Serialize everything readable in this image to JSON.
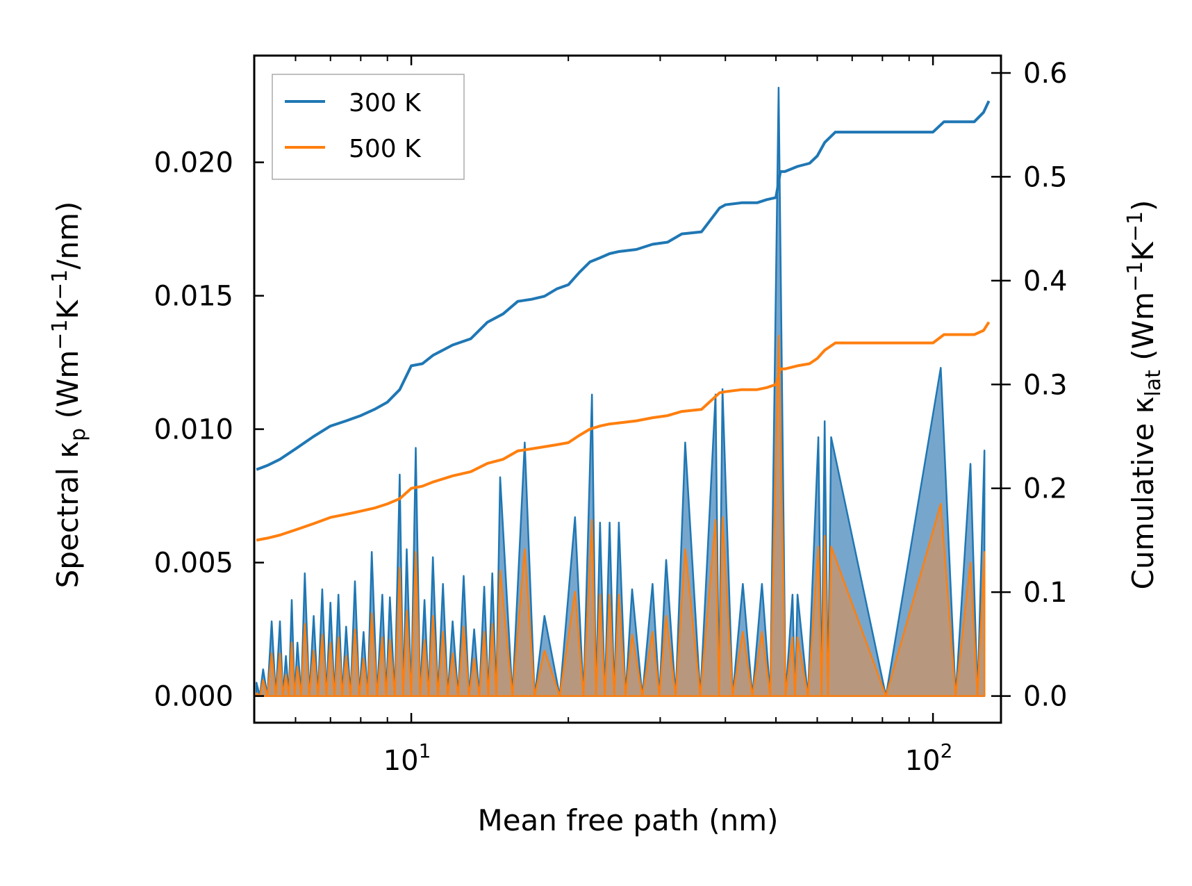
{
  "chart_data": {
    "type": "line",
    "x_scale": "log",
    "xlim": [
      5,
      135
    ],
    "xlabel": "Mean free path (nm)",
    "x_ticks": [
      {
        "value": 10,
        "base": "10",
        "exp": "1"
      },
      {
        "value": 100,
        "base": "10",
        "exp": "2"
      }
    ],
    "y_left": {
      "label_parts": {
        "pre": "Spectral κ",
        "sub": "p",
        "mid": " (Wm",
        "sup1": "−1",
        "mid2": "K",
        "sup2": "−1",
        "post": "/nm)"
      },
      "ylim": [
        -0.001,
        0.024
      ],
      "ticks": [
        "0.000",
        "0.005",
        "0.010",
        "0.015",
        "0.020"
      ],
      "tick_values": [
        0.0,
        0.005,
        0.01,
        0.015,
        0.02
      ]
    },
    "y_right": {
      "label_parts": {
        "pre": "Cumulative κ",
        "sub": "lat",
        "mid": " (Wm",
        "sup1": "−1",
        "mid2": "K",
        "sup2": "−1",
        "post": ")"
      },
      "ylim": [
        -0.0257,
        0.6167
      ],
      "ticks": [
        "0.0",
        "0.1",
        "0.2",
        "0.3",
        "0.4",
        "0.5",
        "0.6"
      ],
      "tick_values": [
        0.0,
        0.1,
        0.2,
        0.3,
        0.4,
        0.5,
        0.6
      ]
    },
    "legend": {
      "position": "top-left",
      "entries": [
        "300 K",
        "500 K"
      ]
    },
    "colors": {
      "s300": "#1f77b4",
      "s500": "#ff7f0e",
      "fill300": "#5f97c4",
      "fill500": "#c7956a"
    },
    "cumulative": [
      {
        "name": "300 K",
        "axis": "right",
        "x": [
          5.05,
          5.3,
          5.6,
          6.0,
          6.5,
          7.0,
          7.5,
          8.0,
          8.5,
          9.0,
          9.5,
          10.0,
          10.5,
          11.0,
          12.0,
          13.0,
          14.0,
          15.0,
          16.0,
          17.0,
          18.0,
          19.0,
          20.0,
          21.0,
          22.0,
          23.0,
          24.0,
          25.0,
          27.0,
          29.0,
          31.0,
          33.0,
          36.0,
          39.0,
          40.0,
          43.0,
          46.0,
          48.0,
          50.0,
          51.0,
          52.0,
          55.0,
          58.0,
          60.0,
          62.0,
          65.0,
          70.0,
          80.0,
          90.0,
          100.0,
          105.0,
          110.0,
          120.0,
          125.0,
          128.0
        ],
        "y": [
          0.218,
          0.222,
          0.228,
          0.238,
          0.25,
          0.26,
          0.265,
          0.27,
          0.276,
          0.283,
          0.295,
          0.318,
          0.32,
          0.328,
          0.338,
          0.344,
          0.36,
          0.368,
          0.38,
          0.382,
          0.385,
          0.392,
          0.396,
          0.408,
          0.418,
          0.422,
          0.426,
          0.428,
          0.43,
          0.435,
          0.437,
          0.445,
          0.447,
          0.47,
          0.473,
          0.475,
          0.475,
          0.478,
          0.48,
          0.505,
          0.505,
          0.51,
          0.513,
          0.52,
          0.533,
          0.543,
          0.543,
          0.543,
          0.543,
          0.543,
          0.553,
          0.553,
          0.553,
          0.562,
          0.573
        ]
      },
      {
        "name": "500 K",
        "axis": "right",
        "x": [
          5.05,
          5.3,
          5.6,
          6.0,
          6.5,
          7.0,
          7.5,
          8.0,
          8.5,
          9.0,
          9.5,
          10.0,
          10.5,
          11.0,
          12.0,
          13.0,
          14.0,
          15.0,
          16.0,
          17.0,
          18.0,
          19.0,
          20.0,
          21.0,
          22.0,
          23.0,
          24.0,
          25.0,
          27.0,
          29.0,
          31.0,
          33.0,
          36.0,
          39.0,
          40.0,
          43.0,
          46.0,
          48.0,
          50.0,
          51.0,
          52.0,
          55.0,
          58.0,
          60.0,
          62.0,
          65.0,
          70.0,
          80.0,
          90.0,
          100.0,
          105.0,
          110.0,
          120.0,
          125.0,
          128.0
        ],
        "y": [
          0.15,
          0.152,
          0.155,
          0.16,
          0.166,
          0.172,
          0.175,
          0.178,
          0.181,
          0.185,
          0.19,
          0.2,
          0.202,
          0.206,
          0.212,
          0.216,
          0.224,
          0.228,
          0.236,
          0.238,
          0.24,
          0.242,
          0.244,
          0.251,
          0.257,
          0.26,
          0.262,
          0.263,
          0.265,
          0.268,
          0.27,
          0.274,
          0.276,
          0.292,
          0.293,
          0.295,
          0.295,
          0.297,
          0.3,
          0.315,
          0.315,
          0.318,
          0.32,
          0.325,
          0.333,
          0.34,
          0.34,
          0.34,
          0.34,
          0.34,
          0.348,
          0.348,
          0.348,
          0.352,
          0.36
        ]
      }
    ],
    "spectral": [
      {
        "name": "300 K",
        "axis": "left",
        "peaks": [
          [
            5.05,
            0.0005
          ],
          [
            5.2,
            0.001
          ],
          [
            5.4,
            0.0028
          ],
          [
            5.6,
            0.0028
          ],
          [
            5.75,
            0.0015
          ],
          [
            5.9,
            0.0036
          ],
          [
            6.05,
            0.002
          ],
          [
            6.25,
            0.0046
          ],
          [
            6.5,
            0.003
          ],
          [
            6.75,
            0.004
          ],
          [
            7.0,
            0.0035
          ],
          [
            7.25,
            0.0038
          ],
          [
            7.5,
            0.0026
          ],
          [
            7.8,
            0.0043
          ],
          [
            8.1,
            0.0024
          ],
          [
            8.4,
            0.0054
          ],
          [
            8.8,
            0.0038
          ],
          [
            9.1,
            0.0037
          ],
          [
            9.5,
            0.0083
          ],
          [
            9.8,
            0.0055
          ],
          [
            10.2,
            0.0093
          ],
          [
            10.6,
            0.0036
          ],
          [
            11.0,
            0.0052
          ],
          [
            11.5,
            0.0042
          ],
          [
            12.0,
            0.0028
          ],
          [
            12.6,
            0.0045
          ],
          [
            13.2,
            0.0025
          ],
          [
            13.8,
            0.0041
          ],
          [
            14.3,
            0.0046
          ],
          [
            14.8,
            0.0082
          ],
          [
            16.5,
            0.0095
          ],
          [
            18.0,
            0.003
          ],
          [
            20.6,
            0.0067
          ],
          [
            22.2,
            0.0113
          ],
          [
            23.0,
            0.0065
          ],
          [
            24.0,
            0.0065
          ],
          [
            25.0,
            0.0065
          ],
          [
            26.5,
            0.004
          ],
          [
            29.0,
            0.0042
          ],
          [
            30.8,
            0.0051
          ],
          [
            33.5,
            0.0095
          ],
          [
            38.3,
            0.0113
          ],
          [
            39.5,
            0.0115
          ],
          [
            43.2,
            0.0042
          ],
          [
            47.0,
            0.0042
          ],
          [
            50.6,
            0.0228
          ],
          [
            53.8,
            0.0038
          ],
          [
            55.0,
            0.0038
          ],
          [
            60.3,
            0.0097
          ],
          [
            62.0,
            0.0103
          ],
          [
            63.8,
            0.0097
          ],
          [
            103.5,
            0.0123
          ],
          [
            118.0,
            0.0087
          ],
          [
            125.5,
            0.0092
          ]
        ]
      },
      {
        "name": "500 K",
        "axis": "left",
        "peaks": [
          [
            5.05,
            0.0001
          ],
          [
            5.2,
            0.0006
          ],
          [
            5.4,
            0.0016
          ],
          [
            5.6,
            0.0016
          ],
          [
            5.75,
            0.0008
          ],
          [
            5.9,
            0.002
          ],
          [
            6.05,
            0.0011
          ],
          [
            6.25,
            0.0027
          ],
          [
            6.5,
            0.0017
          ],
          [
            6.75,
            0.0023
          ],
          [
            7.0,
            0.002
          ],
          [
            7.25,
            0.0022
          ],
          [
            7.5,
            0.0015
          ],
          [
            7.8,
            0.0025
          ],
          [
            8.1,
            0.0014
          ],
          [
            8.4,
            0.0031
          ],
          [
            8.8,
            0.0022
          ],
          [
            9.1,
            0.0021
          ],
          [
            9.5,
            0.0048
          ],
          [
            9.8,
            0.0032
          ],
          [
            10.2,
            0.0054
          ],
          [
            10.6,
            0.0021
          ],
          [
            11.0,
            0.003
          ],
          [
            11.5,
            0.0024
          ],
          [
            12.0,
            0.0016
          ],
          [
            12.6,
            0.0026
          ],
          [
            13.2,
            0.0014
          ],
          [
            13.8,
            0.0024
          ],
          [
            14.3,
            0.0027
          ],
          [
            14.8,
            0.0047
          ],
          [
            16.5,
            0.0055
          ],
          [
            18.0,
            0.0017
          ],
          [
            20.6,
            0.0039
          ],
          [
            22.2,
            0.0066
          ],
          [
            23.0,
            0.0038
          ],
          [
            24.0,
            0.0038
          ],
          [
            25.0,
            0.0038
          ],
          [
            26.5,
            0.0023
          ],
          [
            29.0,
            0.0024
          ],
          [
            30.8,
            0.003
          ],
          [
            33.5,
            0.0055
          ],
          [
            38.3,
            0.0066
          ],
          [
            39.5,
            0.0067
          ],
          [
            43.2,
            0.0024
          ],
          [
            47.0,
            0.0024
          ],
          [
            50.6,
            0.0135
          ],
          [
            53.8,
            0.0022
          ],
          [
            55.0,
            0.0022
          ],
          [
            60.3,
            0.0056
          ],
          [
            62.0,
            0.006
          ],
          [
            63.8,
            0.0056
          ],
          [
            103.5,
            0.0072
          ],
          [
            118.0,
            0.005
          ],
          [
            125.5,
            0.0054
          ]
        ]
      }
    ]
  }
}
